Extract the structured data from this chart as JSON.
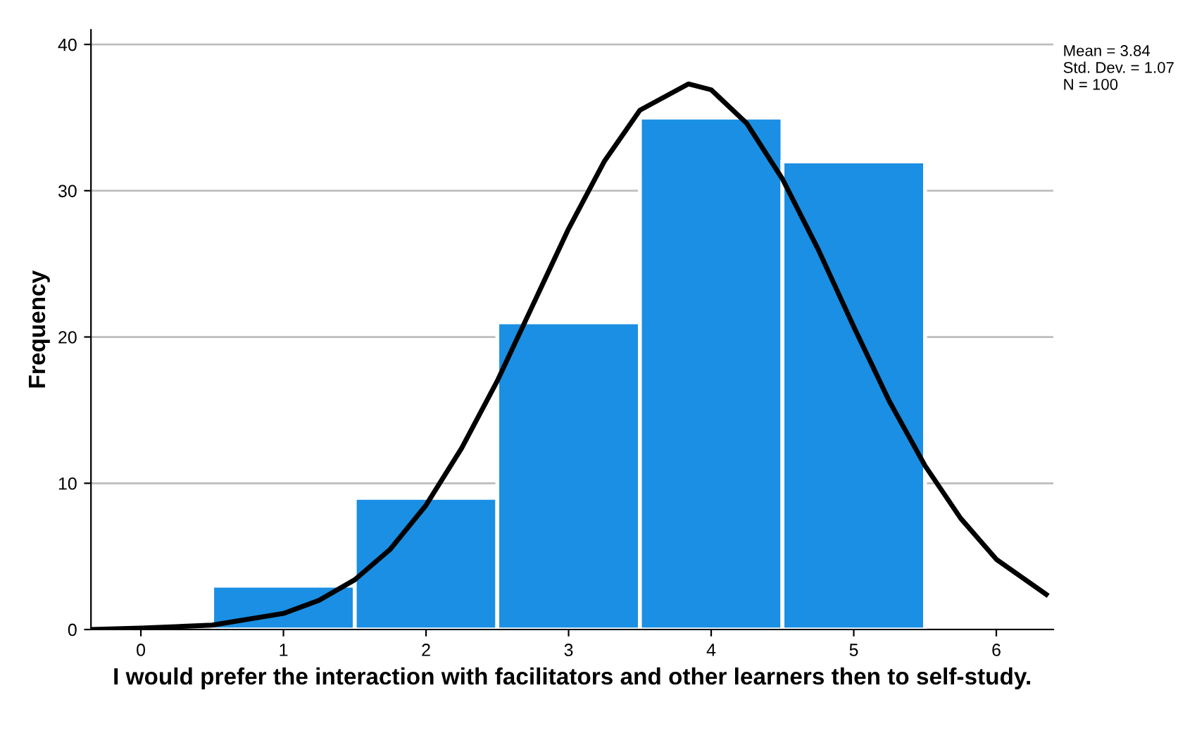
{
  "chart_data": {
    "type": "histogram",
    "bins": [
      0.5,
      1.5,
      2.5,
      3.5,
      4.5,
      5.5
    ],
    "values": [
      3,
      9,
      21,
      35,
      32
    ],
    "color": "#1a8fe3",
    "series": [
      {
        "type": "line",
        "color": "#000000",
        "x": [
          -0.35,
          0,
          0.5,
          1,
          1.25,
          1.5,
          1.75,
          2,
          2.25,
          2.5,
          2.75,
          3,
          3.25,
          3.5,
          3.84,
          4,
          4.25,
          4.5,
          4.75,
          5,
          5.25,
          5.5,
          5.75,
          6,
          6.35
        ],
        "values": [
          0,
          0.1,
          0.3,
          1.1,
          2,
          3.4,
          5.5,
          8.5,
          12.4,
          17,
          22.2,
          27.4,
          32,
          35.5,
          37.3,
          36.9,
          34.6,
          30.8,
          26,
          20.7,
          15.6,
          11.2,
          7.6,
          4.8,
          2.4
        ]
      }
    ],
    "xlabel": "I would prefer the interaction with facilitators and other learners then to self-study.",
    "ylabel": "Frequency",
    "annotations": [
      "Mean = 3.84\nStd. Dev. = 1.07\nN = 100"
    ],
    "xlim": [
      -0.35,
      6.4
    ],
    "xticks": [
      0,
      1,
      2,
      3,
      4,
      5,
      6
    ],
    "ylim": [
      0,
      41
    ],
    "yticks": [
      0,
      10,
      20,
      30,
      40
    ],
    "grid": "y"
  }
}
